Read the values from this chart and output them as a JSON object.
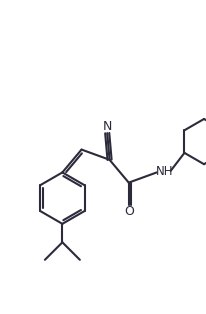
{
  "line_color": "#2b2b3b",
  "bg_color": "#ffffff",
  "line_width": 1.5,
  "figsize": [
    2.07,
    3.14
  ],
  "dpi": 100,
  "xlim": [
    0,
    10
  ],
  "ylim": [
    0,
    15
  ]
}
